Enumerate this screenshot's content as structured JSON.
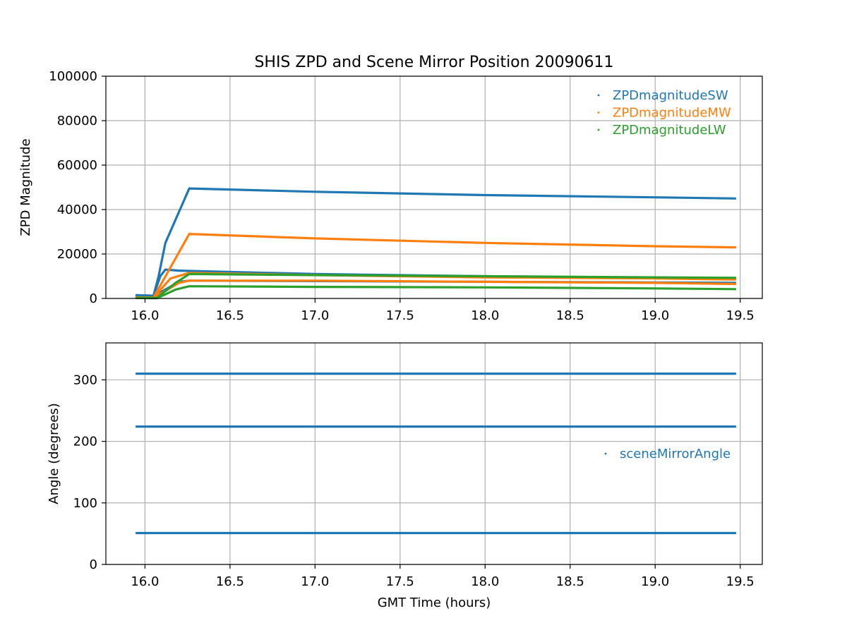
{
  "chart_data": [
    {
      "type": "scatter",
      "title": "SHIS ZPD and Scene Mirror Position 20090611",
      "xlabel": "",
      "ylabel": "ZPD Magnitude",
      "xlim": [
        15.77,
        19.63
      ],
      "ylim": [
        0,
        100000
      ],
      "xticks": [
        16.0,
        16.5,
        17.0,
        17.5,
        18.0,
        18.5,
        19.0,
        19.5
      ],
      "yticks": [
        0,
        20000,
        40000,
        60000,
        80000,
        100000
      ],
      "grid": true,
      "legend_position": "top-right",
      "series": [
        {
          "name": "ZPDmagnitudeSW",
          "color": "#1f77b4",
          "lines": [
            {
              "x": [
                15.95,
                16.05,
                16.08,
                16.12,
                16.26,
                17.0,
                18.0,
                19.0,
                19.47
              ],
              "y": [
                1500,
                1200,
                10000,
                25000,
                49500,
                48000,
                46500,
                45500,
                45000
              ]
            },
            {
              "x": [
                15.95,
                16.05,
                16.09,
                16.12,
                16.2,
                17.0,
                18.0,
                19.0,
                19.47
              ],
              "y": [
                1500,
                1200,
                10000,
                13000,
                12500,
                11000,
                10000,
                9200,
                9000
              ]
            },
            {
              "x": [
                15.95,
                16.05,
                16.2,
                16.26,
                17.0,
                18.0,
                19.0,
                19.47
              ],
              "y": [
                1200,
                1000,
                7500,
                8000,
                7800,
                7500,
                7200,
                7000
              ]
            }
          ]
        },
        {
          "name": "ZPDmagnitudeMW",
          "color": "#ff7f0e",
          "lines": [
            {
              "x": [
                15.95,
                16.05,
                16.15,
                16.26,
                17.0,
                18.0,
                19.0,
                19.47
              ],
              "y": [
                500,
                400,
                14000,
                29000,
                27000,
                25000,
                23500,
                23000
              ]
            },
            {
              "x": [
                15.95,
                16.05,
                16.15,
                16.26,
                17.0,
                18.0,
                19.0,
                19.47
              ],
              "y": [
                400,
                300,
                9000,
                11500,
                10500,
                9500,
                9000,
                8500
              ]
            },
            {
              "x": [
                15.95,
                16.05,
                16.2,
                16.26,
                17.0,
                18.0,
                19.0,
                19.47
              ],
              "y": [
                300,
                200,
                7000,
                8000,
                8000,
                7500,
                7000,
                6500
              ]
            }
          ]
        },
        {
          "name": "ZPDmagnitudeLW",
          "color": "#2ca02c",
          "lines": [
            {
              "x": [
                15.95,
                16.07,
                16.18,
                16.26,
                17.0,
                18.0,
                19.0,
                19.47
              ],
              "y": [
                300,
                200,
                7000,
                11000,
                10500,
                10000,
                9500,
                9300
              ]
            },
            {
              "x": [
                15.95,
                16.07,
                16.18,
                16.26,
                17.0,
                18.0,
                19.0,
                19.47
              ],
              "y": [
                200,
                100,
                4000,
                5500,
                5200,
                5000,
                4500,
                4200
              ]
            }
          ]
        }
      ]
    },
    {
      "type": "scatter",
      "title": "",
      "xlabel": "GMT Time (hours)",
      "ylabel": "Angle (degrees)",
      "xlim": [
        15.77,
        19.63
      ],
      "ylim": [
        0,
        360
      ],
      "xticks": [
        16.0,
        16.5,
        17.0,
        17.5,
        18.0,
        18.5,
        19.0,
        19.5
      ],
      "yticks": [
        0,
        100,
        200,
        300
      ],
      "grid": true,
      "legend_position": "center-right",
      "series": [
        {
          "name": "sceneMirrorAngle",
          "color": "#1f77b4",
          "lines": [
            {
              "x": [
                15.95,
                19.47
              ],
              "y": [
                310,
                310
              ]
            },
            {
              "x": [
                15.95,
                19.47
              ],
              "y": [
                224,
                224
              ]
            },
            {
              "x": [
                15.95,
                19.47
              ],
              "y": [
                51,
                51
              ]
            }
          ]
        }
      ]
    }
  ]
}
